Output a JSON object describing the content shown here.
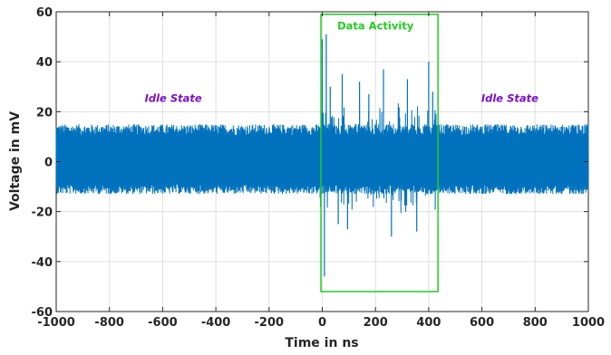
{
  "chart_data": {
    "type": "line",
    "title": "",
    "xlabel": "Time in ns",
    "ylabel": "Voltage in mV",
    "xlim": [
      -1000,
      1000
    ],
    "ylim": [
      -60,
      60
    ],
    "x_ticks": [
      -1000,
      -800,
      -600,
      -400,
      -200,
      0,
      200,
      400,
      600,
      800,
      1000
    ],
    "y_ticks": [
      -60,
      -40,
      -20,
      0,
      20,
      40,
      60
    ],
    "grid": true,
    "series": [
      {
        "color": "#0072BD",
        "description_points": {
          "idle_envelope_mV": [
            -13,
            15
          ],
          "data_activity_x_range_ns": [
            -10,
            430
          ],
          "data_activity_peaks": [
            {
              "x": 0,
              "y": 49
            },
            {
              "x": 8,
              "y": -46
            },
            {
              "x": 15,
              "y": 51
            },
            {
              "x": 30,
              "y": 30
            },
            {
              "x": 60,
              "y": -25
            },
            {
              "x": 75,
              "y": 35
            },
            {
              "x": 95,
              "y": -27
            },
            {
              "x": 140,
              "y": 32
            },
            {
              "x": 175,
              "y": 27
            },
            {
              "x": 230,
              "y": 37
            },
            {
              "x": 260,
              "y": -30
            },
            {
              "x": 320,
              "y": 33
            },
            {
              "x": 355,
              "y": -28
            },
            {
              "x": 400,
              "y": 40
            },
            {
              "x": 415,
              "y": 28
            }
          ]
        }
      }
    ],
    "annotations": [
      {
        "text": "Idle State",
        "x": -560,
        "y": 24,
        "color": "#7B10C8"
      },
      {
        "text": "Idle State",
        "x": 705,
        "y": 24,
        "color": "#7B10C8"
      },
      {
        "text": "Data Activity",
        "x": 200,
        "y": 53,
        "color": "#22CC22"
      }
    ],
    "box": {
      "x": [
        -5,
        435
      ],
      "y": [
        -52,
        59
      ],
      "color": "#22CC22"
    }
  }
}
